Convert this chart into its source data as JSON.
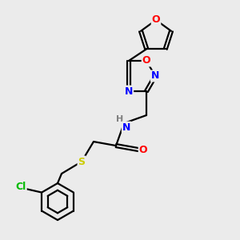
{
  "background_color": "#ebebeb",
  "bond_color": "#000000",
  "atom_colors": {
    "O": "#ff0000",
    "N": "#0000ff",
    "S": "#cccc00",
    "Cl": "#00bb00",
    "H": "#808080",
    "C": "#000000"
  },
  "figsize": [
    3.0,
    3.0
  ],
  "dpi": 100
}
